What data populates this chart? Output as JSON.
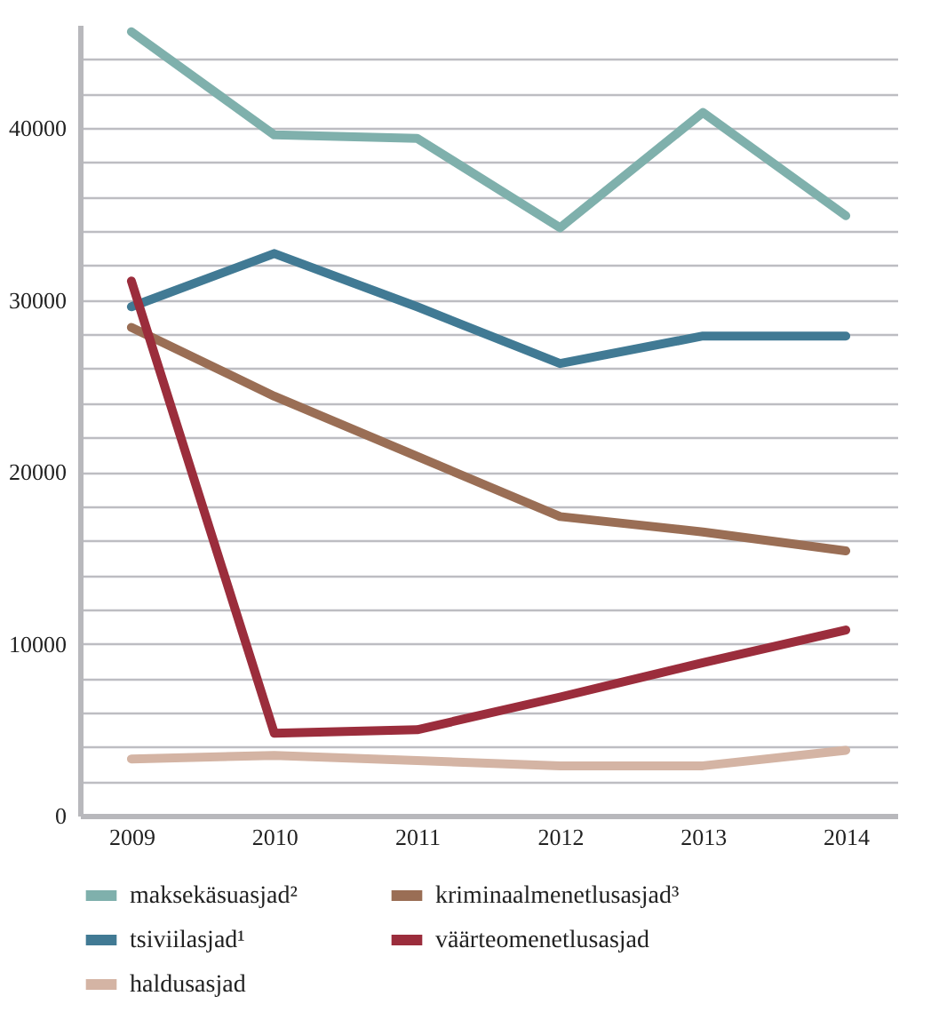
{
  "chart_data": {
    "type": "line",
    "categories": [
      "2009",
      "2010",
      "2011",
      "2012",
      "2013",
      "2014"
    ],
    "series": [
      {
        "name": "maksekäsuasjad²",
        "color": "#7fb0ac",
        "values": [
          45600,
          39600,
          39400,
          34200,
          40900,
          34900
        ]
      },
      {
        "name": "kriminaalmenetlusasjad³",
        "color": "#9a6e55",
        "values": [
          28400,
          24400,
          20900,
          17400,
          16500,
          15400
        ]
      },
      {
        "name": "tsiviilasjad¹",
        "color": "#417a94",
        "values": [
          29600,
          32700,
          29600,
          26300,
          27900,
          27900
        ]
      },
      {
        "name": "väärteomenetlusasjad",
        "color": "#9b2d3c",
        "values": [
          31100,
          4800,
          5000,
          6900,
          8900,
          10800
        ]
      },
      {
        "name": "haldusasjad",
        "color": "#d4b4a4",
        "values": [
          3300,
          3500,
          3200,
          2900,
          2900,
          3800
        ]
      }
    ],
    "ylim": [
      0,
      46000
    ],
    "yticks": [
      0,
      {
        "value": 2000,
        "label": null
      },
      {
        "value": 4000,
        "label": null
      },
      {
        "value": 6000,
        "label": null
      },
      {
        "value": 8000,
        "label": null
      },
      10000,
      {
        "value": 12000,
        "label": null
      },
      {
        "value": 14000,
        "label": null
      },
      {
        "value": 16000,
        "label": null
      },
      {
        "value": 18000,
        "label": null
      },
      20000,
      {
        "value": 22000,
        "label": null
      },
      {
        "value": 24000,
        "label": null
      },
      {
        "value": 26000,
        "label": null
      },
      {
        "value": 28000,
        "label": null
      },
      30000,
      {
        "value": 32000,
        "label": null
      },
      {
        "value": 34000,
        "label": null
      },
      {
        "value": 36000,
        "label": null
      },
      {
        "value": 38000,
        "label": null
      },
      40000,
      {
        "value": 42000,
        "label": null
      },
      {
        "value": 44000,
        "label": null
      }
    ],
    "grid": "y",
    "legend": "bottom",
    "marker": "none",
    "line_style": "solid"
  }
}
